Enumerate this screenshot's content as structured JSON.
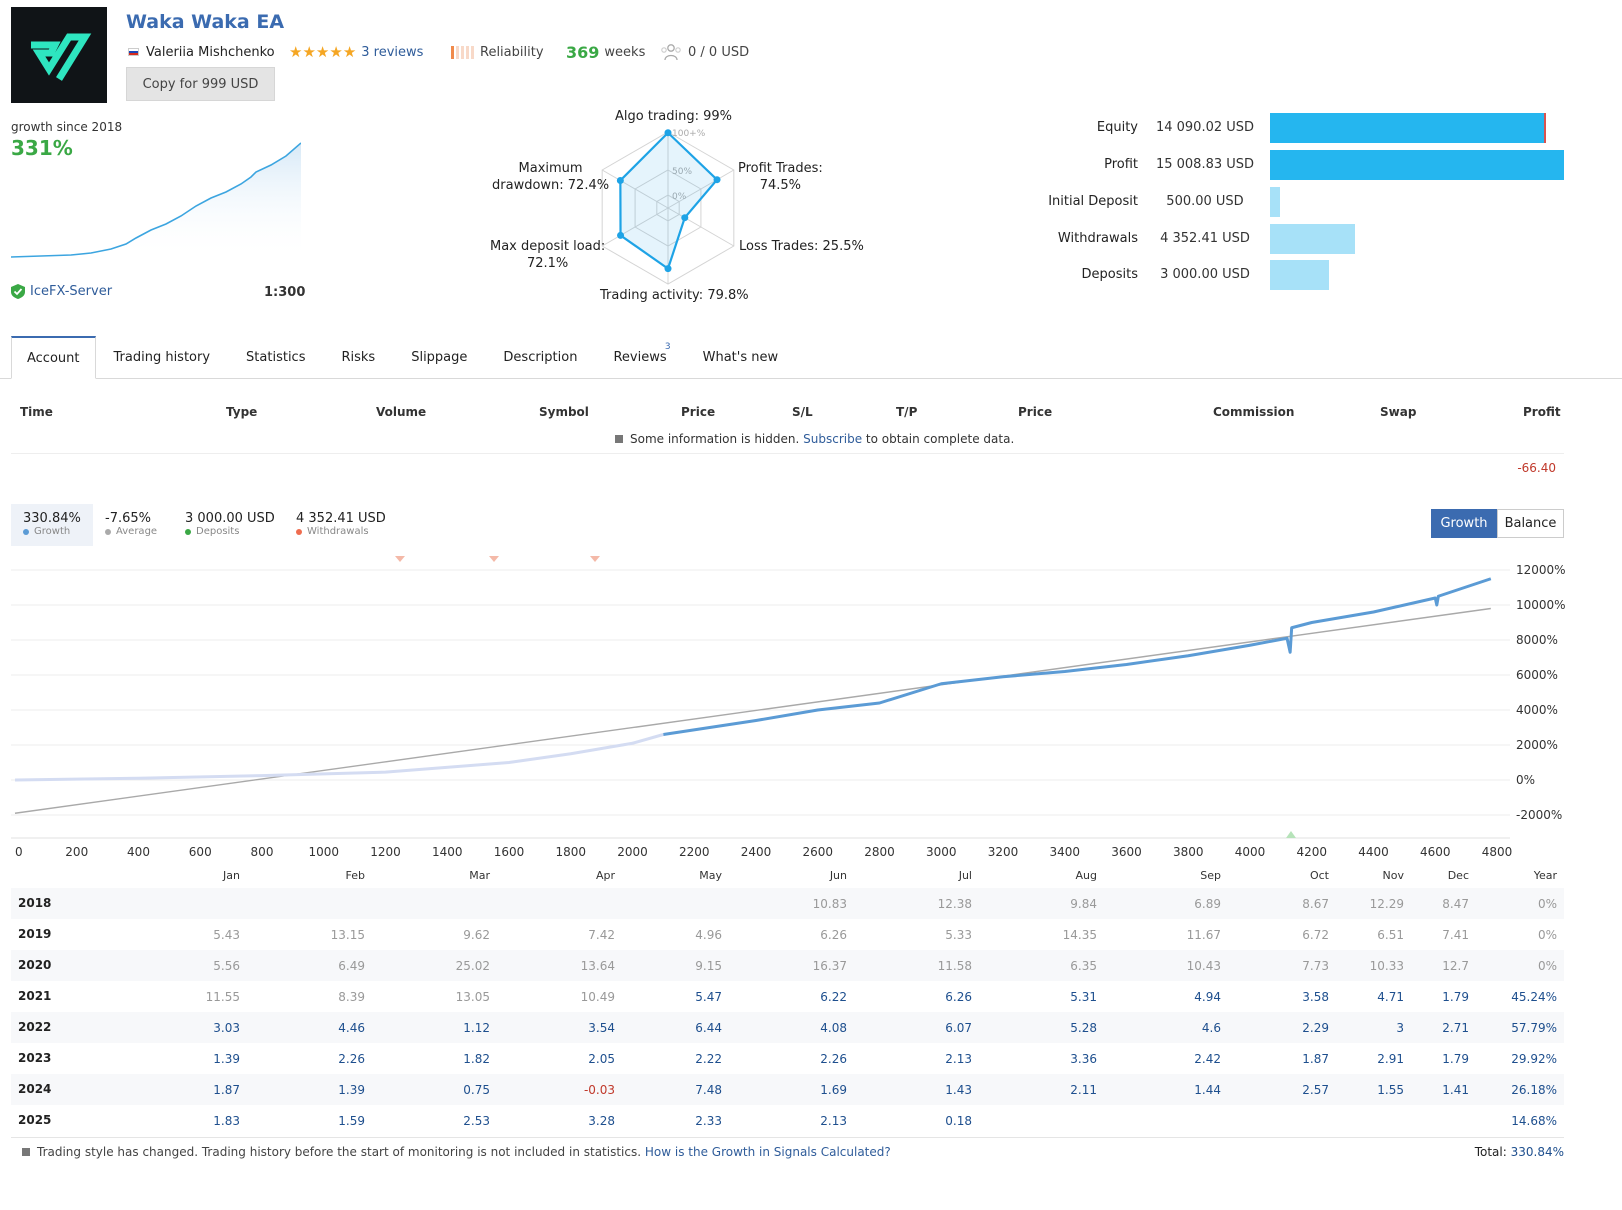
{
  "header": {
    "title": "Waka Waka EA",
    "author": "Valeriia Mishchenko",
    "reviews": "3 reviews",
    "reliability": "Reliability",
    "weeks_num": "369",
    "weeks_label": "weeks",
    "subscribers": "0 / 0 USD",
    "copy_button": "Copy for 999 USD"
  },
  "growth_summary": {
    "label": "growth since 2018",
    "value": "331%",
    "server": "IceFX-Server",
    "leverage": "1:300"
  },
  "radar": {
    "labels": {
      "algo": "Algo trading: 99%",
      "profit_trades": [
        "Profit Trades:",
        "74.5%"
      ],
      "loss_trades": "Loss Trades: 25.5%",
      "activity": "Trading activity: 79.8%",
      "deposit_load": [
        "Max deposit load:",
        "72.1%"
      ],
      "drawdown": [
        "Maximum",
        "drawdown: 72.4%"
      ]
    },
    "scale_labels": [
      "100+%",
      "50%",
      "0%"
    ],
    "values": [
      99,
      74.5,
      25.5,
      79.8,
      72.1,
      72.4
    ]
  },
  "finance": [
    {
      "label": "Equity",
      "value": "14 090.02 USD",
      "amount": 14090.02
    },
    {
      "label": "Profit",
      "value": "15 008.83 USD",
      "amount": 15008.83
    },
    {
      "label": "Initial Deposit",
      "value": "500.00 USD",
      "amount": 500
    },
    {
      "label": "Withdrawals",
      "value": "4 352.41 USD",
      "amount": 4352.41
    },
    {
      "label": "Deposits",
      "value": "3 000.00 USD",
      "amount": 3000
    }
  ],
  "tabs": [
    "Account",
    "Trading history",
    "Statistics",
    "Risks",
    "Slippage",
    "Description",
    "Reviews",
    "What's new"
  ],
  "reviews_count": "3",
  "trade_table": {
    "headers": [
      "Time",
      "Type",
      "Volume",
      "Symbol",
      "Price",
      "S/L",
      "T/P",
      "Price",
      "Commission",
      "Swap",
      "Profit"
    ],
    "note_text": "Some information is hidden.",
    "note_link": "Subscribe",
    "note_tail": "to obtain complete data.",
    "profit": "-66.40"
  },
  "summary": [
    {
      "value": "330.84%",
      "label": "Growth",
      "color": "#5b9bd5"
    },
    {
      "value": "-7.65%",
      "label": "Average",
      "color": "#aaaaaa"
    },
    {
      "value": "3 000.00 USD",
      "label": "Deposits",
      "color": "#3aa845"
    },
    {
      "value": "4 352.41 USD",
      "label": "Withdrawals",
      "color": "#ef6c4f"
    }
  ],
  "toggle": {
    "growth": "Growth",
    "balance": "Balance"
  },
  "chart_data": {
    "type": "line",
    "x_ticks": [
      "0",
      "200",
      "400",
      "600",
      "800",
      "1000",
      "1200",
      "1400",
      "1600",
      "1800",
      "2000",
      "2200",
      "2400",
      "2600",
      "2800",
      "3000",
      "3200",
      "3400",
      "3600",
      "3800",
      "4000",
      "4200",
      "4400",
      "4600",
      "4800"
    ],
    "y_ticks": [
      "12000%",
      "10000%",
      "8000%",
      "6000%",
      "4000%",
      "2000%",
      "0%",
      "-2000%"
    ],
    "xlim": [
      0,
      4800
    ],
    "ylim": [
      -2000,
      12000
    ],
    "series": [
      {
        "name": "Growth",
        "color": "#5b9bd5",
        "x": [
          0,
          400,
          800,
          1200,
          1600,
          1800,
          2000,
          2100,
          2400,
          2600,
          2800,
          3000,
          3200,
          3400,
          3600,
          3800,
          4000,
          4120,
          4130,
          4135,
          4200,
          4400,
          4600,
          4605,
          4610,
          4780
        ],
        "y": [
          0,
          100,
          250,
          450,
          1000,
          1500,
          2100,
          2600,
          3400,
          4000,
          4400,
          5500,
          5900,
          6200,
          6600,
          7100,
          7700,
          8100,
          7300,
          8700,
          9000,
          9600,
          10400,
          10000,
          10500,
          11500
        ]
      },
      {
        "name": "Average",
        "color": "#aaaaaa",
        "x": [
          0,
          4780
        ],
        "y": [
          -1900,
          9800
        ]
      }
    ]
  },
  "monthly": {
    "months": [
      "Jan",
      "Feb",
      "Mar",
      "Apr",
      "May",
      "Jun",
      "Jul",
      "Aug",
      "Sep",
      "Oct",
      "Nov",
      "Dec",
      "Year"
    ],
    "rows": [
      {
        "year": "2018",
        "old": true,
        "cells": [
          "",
          "",
          "",
          "",
          "",
          "10.83",
          "12.38",
          "9.84",
          "6.89",
          "8.67",
          "12.29",
          "8.47",
          "0%"
        ]
      },
      {
        "year": "2019",
        "old": true,
        "cells": [
          "5.43",
          "13.15",
          "9.62",
          "7.42",
          "4.96",
          "6.26",
          "5.33",
          "14.35",
          "11.67",
          "6.72",
          "6.51",
          "7.41",
          "0%"
        ]
      },
      {
        "year": "2020",
        "old": true,
        "cells": [
          "5.56",
          "6.49",
          "25.02",
          "13.64",
          "9.15",
          "16.37",
          "11.58",
          "6.35",
          "10.43",
          "7.73",
          "10.33",
          "12.7",
          "0%"
        ]
      },
      {
        "year": "2021",
        "old": false,
        "oldUntil": 4,
        "cells": [
          "11.55",
          "8.39",
          "13.05",
          "10.49",
          "5.47",
          "6.22",
          "6.26",
          "5.31",
          "4.94",
          "3.58",
          "4.71",
          "1.79",
          "45.24%"
        ]
      },
      {
        "year": "2022",
        "old": false,
        "cells": [
          "3.03",
          "4.46",
          "1.12",
          "3.54",
          "6.44",
          "4.08",
          "6.07",
          "5.28",
          "4.6",
          "2.29",
          "3",
          "2.71",
          "57.79%"
        ]
      },
      {
        "year": "2023",
        "old": false,
        "cells": [
          "1.39",
          "2.26",
          "1.82",
          "2.05",
          "2.22",
          "2.26",
          "2.13",
          "3.36",
          "2.42",
          "1.87",
          "2.91",
          "1.79",
          "29.92%"
        ]
      },
      {
        "year": "2024",
        "old": false,
        "cells": [
          "1.87",
          "1.39",
          "0.75",
          "-0.03",
          "7.48",
          "1.69",
          "1.43",
          "2.11",
          "1.44",
          "2.57",
          "1.55",
          "1.41",
          "26.18%"
        ]
      },
      {
        "year": "2025",
        "old": false,
        "cells": [
          "1.83",
          "1.59",
          "2.53",
          "3.28",
          "2.33",
          "2.13",
          "0.18",
          "",
          "",
          "",
          "",
          "",
          "14.68%"
        ]
      }
    ]
  },
  "footer": {
    "note": "Trading style has changed. Trading history before the start of monitoring is not included in statistics.",
    "link": "How is the Growth in Signals Calculated?",
    "total_label": "Total:",
    "total_value": "330.84%"
  }
}
